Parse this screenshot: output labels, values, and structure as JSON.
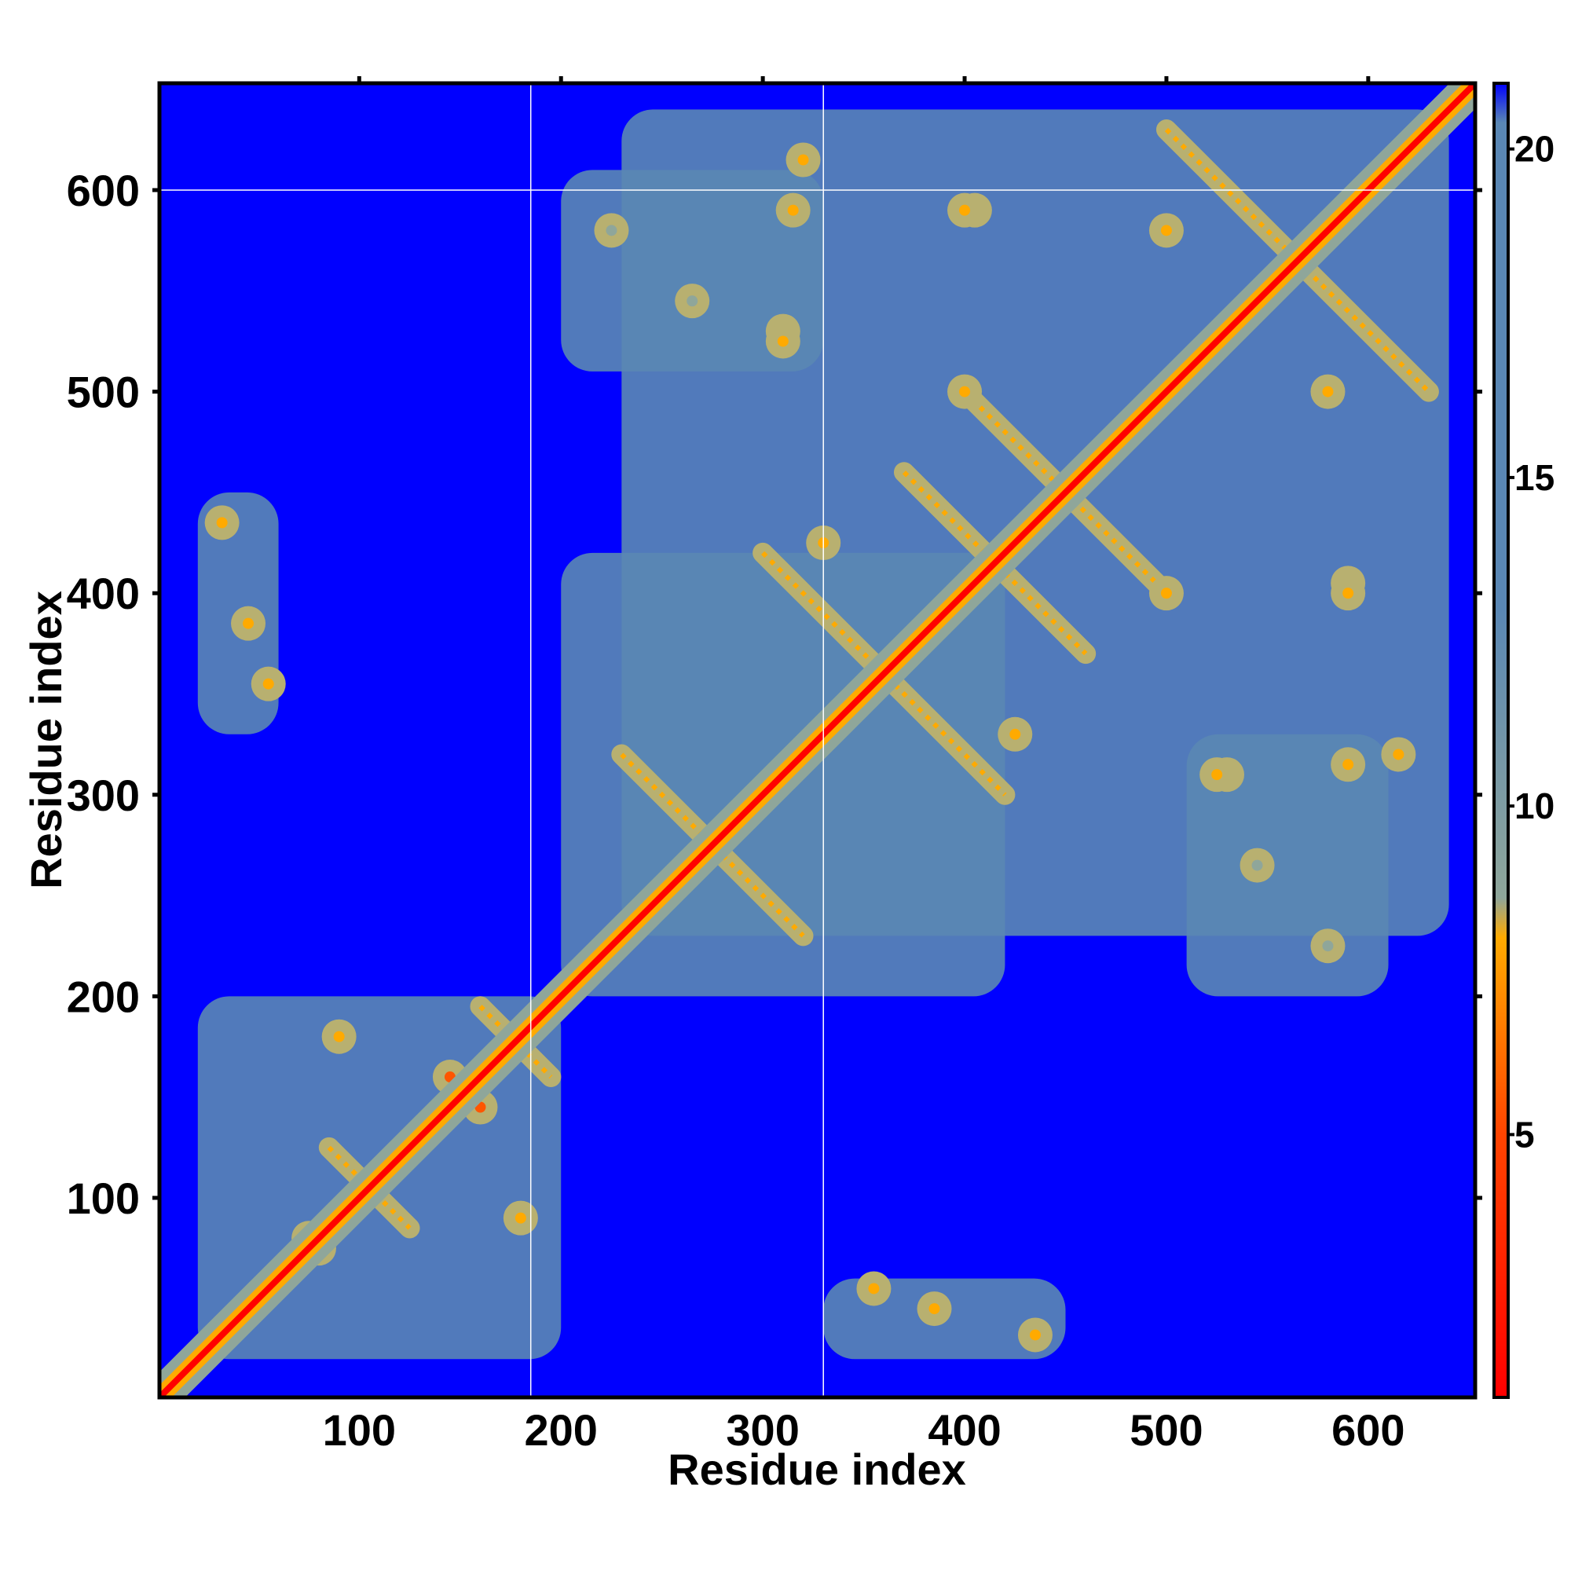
{
  "chart_data": {
    "type": "heatmap",
    "title": "",
    "xlabel": "Residue index",
    "ylabel": "Residue index",
    "xlim": [
      1,
      653
    ],
    "ylim": [
      1,
      653
    ],
    "x_ticks": [
      100,
      200,
      300,
      400,
      500,
      600
    ],
    "y_ticks": [
      100,
      200,
      300,
      400,
      500,
      600
    ],
    "x_tick_labels": [
      "100",
      "200",
      "300",
      "400",
      "500",
      "600"
    ],
    "y_tick_labels": [
      "100",
      "200",
      "300",
      "400",
      "500",
      "600"
    ],
    "colorbar": {
      "range": [
        1,
        21
      ],
      "ticks": [
        5,
        10,
        15,
        20
      ],
      "tick_labels": [
        "5",
        "10",
        "15",
        "20"
      ],
      "colors": [
        "#ff0000",
        "#ff7700",
        "#ffaa00",
        "#8fa69a",
        "#5a87b4",
        "#0000ff"
      ]
    },
    "guide_lines": {
      "x": [
        185,
        330
      ],
      "y": [
        600
      ]
    },
    "diagonal": {
      "from": 1,
      "to": 653
    },
    "contact_regions": [
      {
        "x": [
          20,
          200
        ],
        "y": [
          20,
          200
        ],
        "value": 14
      },
      {
        "x": [
          200,
          420
        ],
        "y": [
          200,
          420
        ],
        "value": 14
      },
      {
        "x": [
          230,
          640
        ],
        "y": [
          230,
          640
        ],
        "value": 15
      },
      {
        "x": [
          20,
          60
        ],
        "y": [
          330,
          450
        ],
        "value": 13
      },
      {
        "x": [
          330,
          450
        ],
        "y": [
          20,
          60
        ],
        "value": 13
      },
      {
        "x": [
          200,
          330
        ],
        "y": [
          510,
          610
        ],
        "value": 14
      },
      {
        "x": [
          510,
          610
        ],
        "y": [
          200,
          330
        ],
        "value": 14
      }
    ],
    "hot_spots": [
      {
        "x": 32,
        "y": 435,
        "value": 8
      },
      {
        "x": 45,
        "y": 385,
        "value": 8
      },
      {
        "x": 55,
        "y": 355,
        "value": 7
      },
      {
        "x": 435,
        "y": 32,
        "value": 8
      },
      {
        "x": 385,
        "y": 45,
        "value": 8
      },
      {
        "x": 355,
        "y": 55,
        "value": 7
      },
      {
        "x": 90,
        "y": 180,
        "value": 7
      },
      {
        "x": 180,
        "y": 90,
        "value": 7
      },
      {
        "x": 145,
        "y": 160,
        "value": 6
      },
      {
        "x": 160,
        "y": 145,
        "value": 6
      },
      {
        "x": 80,
        "y": 75,
        "value": 6
      },
      {
        "x": 75,
        "y": 80,
        "value": 6
      },
      {
        "x": 225,
        "y": 580,
        "value": 9
      },
      {
        "x": 580,
        "y": 225,
        "value": 9
      },
      {
        "x": 265,
        "y": 545,
        "value": 9
      },
      {
        "x": 545,
        "y": 265,
        "value": 9
      },
      {
        "x": 315,
        "y": 590,
        "value": 8
      },
      {
        "x": 590,
        "y": 315,
        "value": 8
      },
      {
        "x": 405,
        "y": 590,
        "value": 8
      },
      {
        "x": 590,
        "y": 405,
        "value": 8
      },
      {
        "x": 310,
        "y": 530,
        "value": 8
      },
      {
        "x": 530,
        "y": 310,
        "value": 8
      },
      {
        "x": 400,
        "y": 500,
        "value": 8
      },
      {
        "x": 500,
        "y": 400,
        "value": 8
      },
      {
        "x": 425,
        "y": 330,
        "value": 8
      },
      {
        "x": 330,
        "y": 425,
        "value": 8
      },
      {
        "x": 580,
        "y": 500,
        "value": 8
      },
      {
        "x": 500,
        "y": 580,
        "value": 8
      },
      {
        "x": 525,
        "y": 310,
        "value": 8
      },
      {
        "x": 310,
        "y": 525,
        "value": 8
      },
      {
        "x": 615,
        "y": 320,
        "value": 8
      },
      {
        "x": 320,
        "y": 615,
        "value": 8
      },
      {
        "x": 590,
        "y": 400,
        "value": 8
      },
      {
        "x": 400,
        "y": 590,
        "value": 8
      }
    ],
    "antidiagonal_strands": [
      {
        "from": [
          230,
          320
        ],
        "to": [
          320,
          230
        ],
        "value": 8
      },
      {
        "from": [
          300,
          420
        ],
        "to": [
          420,
          300
        ],
        "value": 8
      },
      {
        "from": [
          370,
          460
        ],
        "to": [
          460,
          370
        ],
        "value": 8
      },
      {
        "from": [
          400,
          500
        ],
        "to": [
          500,
          400
        ],
        "value": 8
      },
      {
        "from": [
          500,
          630
        ],
        "to": [
          630,
          500
        ],
        "value": 8
      },
      {
        "from": [
          85,
          125
        ],
        "to": [
          125,
          85
        ],
        "value": 7
      },
      {
        "from": [
          160,
          195
        ],
        "to": [
          195,
          160
        ],
        "value": 7
      }
    ]
  }
}
